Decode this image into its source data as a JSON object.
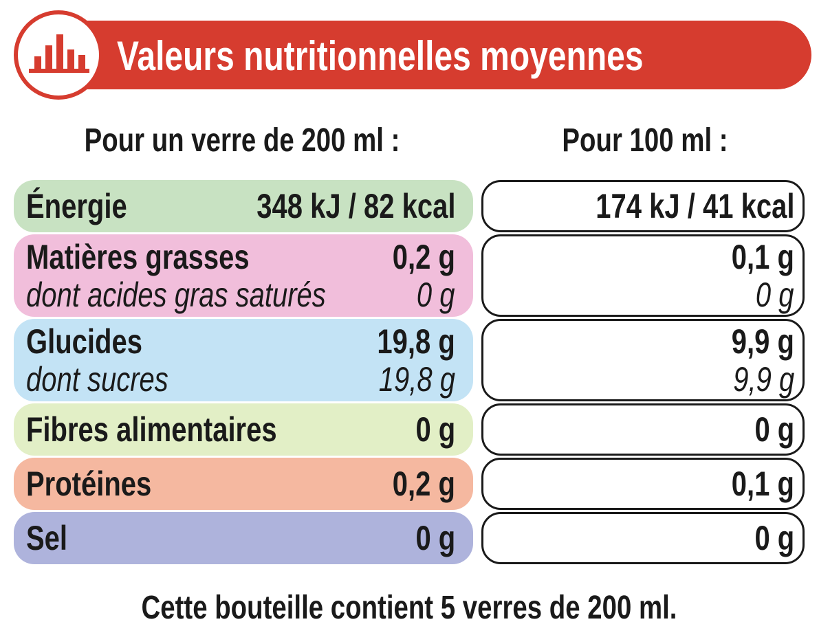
{
  "header": {
    "title": "Valeurs nutritionnelles moyennes"
  },
  "columns": [
    "Pour un verre de 200 ml :",
    "Pour 100 ml :"
  ],
  "rows": [
    {
      "label": "Énergie",
      "per_glass": "348 kJ / 82 kcal",
      "per_100ml": "174 kJ / 41 kcal"
    },
    {
      "label": "Matières grasses",
      "per_glass": "0,2 g",
      "per_100ml": "0,1 g",
      "sub": {
        "label": "dont acides gras saturés",
        "per_glass": "0 g",
        "per_100ml": "0 g"
      }
    },
    {
      "label": "Glucides",
      "per_glass": "19,8 g",
      "per_100ml": "9,9 g",
      "sub": {
        "label": "dont sucres",
        "per_glass": "19,8 g",
        "per_100ml": "9,9 g"
      }
    },
    {
      "label": "Fibres alimentaires",
      "per_glass": "0 g",
      "per_100ml": "0 g"
    },
    {
      "label": "Protéines",
      "per_glass": "0,2 g",
      "per_100ml": "0,1 g"
    },
    {
      "label": "Sel",
      "per_glass": "0 g",
      "per_100ml": "0 g"
    }
  ],
  "footer": "Cette bouteille contient 5 verres de 200 ml."
}
